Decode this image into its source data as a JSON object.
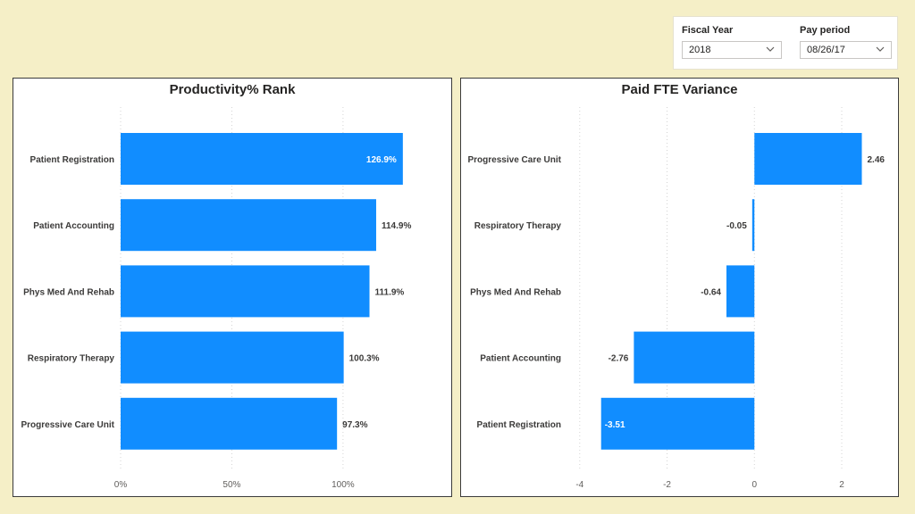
{
  "slicers": {
    "fiscal_year": {
      "label": "Fiscal Year",
      "value": "2018"
    },
    "pay_period": {
      "label": "Pay period",
      "value": "08/26/17"
    }
  },
  "chart_data": [
    {
      "type": "bar",
      "orientation": "horizontal",
      "title": "Productivity% Rank",
      "categories": [
        "Patient Registration",
        "Patient Accounting",
        "Phys Med And Rehab",
        "Respiratory Therapy",
        "Progressive Care Unit"
      ],
      "values": [
        126.9,
        114.9,
        111.9,
        100.3,
        97.3
      ],
      "data_labels": [
        "126.9%",
        "114.9%",
        "111.9%",
        "100.3%",
        "97.3%"
      ],
      "unit": "%",
      "xlim": [
        0,
        135
      ],
      "xticks": [
        0,
        50,
        100
      ],
      "xtick_labels": [
        "0%",
        "50%",
        "100%"
      ],
      "bar_color": "#118dff",
      "grid": true
    },
    {
      "type": "bar",
      "orientation": "horizontal",
      "title": "Paid FTE Variance",
      "categories": [
        "Progressive Care Unit",
        "Respiratory Therapy",
        "Phys Med And Rehab",
        "Patient Accounting",
        "Patient Registration"
      ],
      "values": [
        2.46,
        -0.05,
        -0.64,
        -2.76,
        -3.51
      ],
      "data_labels": [
        "2.46",
        "-0.05",
        "-0.64",
        "-2.76",
        "-3.51"
      ],
      "xlim": [
        -4.2,
        2.9
      ],
      "xticks": [
        -4,
        -2,
        0,
        2
      ],
      "xtick_labels": [
        "-4",
        "-2",
        "0",
        "2"
      ],
      "bar_color": "#118dff",
      "grid": true
    }
  ]
}
